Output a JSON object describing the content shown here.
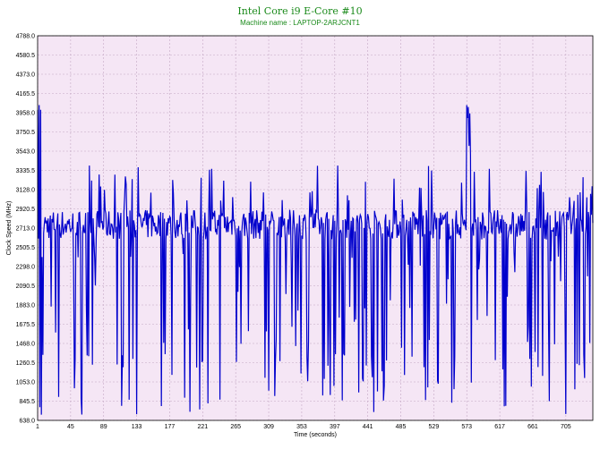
{
  "chart_data": {
    "type": "line",
    "title": "Intel Core i9 E-Core #10",
    "subtitle": "Machine name : LAPTOP-2ARJCNT1",
    "xlabel": "Time (seconds)",
    "ylabel": "Clock Speed (MHz)",
    "xlim": [
      1,
      741
    ],
    "ylim": [
      638.0,
      4788.0
    ],
    "grid": true,
    "x_ticks": [
      "1",
      "45",
      "89",
      "133",
      "177",
      "221",
      "265",
      "309",
      "353",
      "397",
      "441",
      "485",
      "529",
      "573",
      "617",
      "661",
      "705"
    ],
    "y_ticks": [
      "638.0",
      "845.5",
      "1053.0",
      "1260.5",
      "1468.0",
      "1675.5",
      "1883.0",
      "2090.5",
      "2298.0",
      "2505.5",
      "2713.0",
      "2920.5",
      "3128.0",
      "3335.5",
      "3543.0",
      "3750.5",
      "3958.0",
      "4165.5",
      "4373.0",
      "4580.5",
      "4788.0"
    ],
    "series": [
      {
        "color": "#0000cc",
        "seed": 7,
        "baseline": 2750,
        "jitter": 160,
        "notes_points": [
          [
            1,
            3990
          ],
          [
            2,
            2600
          ],
          [
            3,
            4040
          ],
          [
            4,
            780
          ],
          [
            5,
            3990
          ],
          [
            6,
            700
          ],
          [
            7,
            2400
          ],
          [
            573,
            4040
          ],
          [
            574,
            3900
          ],
          [
            575,
            4020
          ],
          [
            576,
            3600
          ],
          [
            577,
            3950
          ],
          [
            578,
            3500
          ]
        ]
      }
    ],
    "colors": {
      "plot_bg": "#f5e6f5",
      "grid": "#c4a8c4",
      "title": "#1a8a1a",
      "line": "#0000cc"
    }
  }
}
